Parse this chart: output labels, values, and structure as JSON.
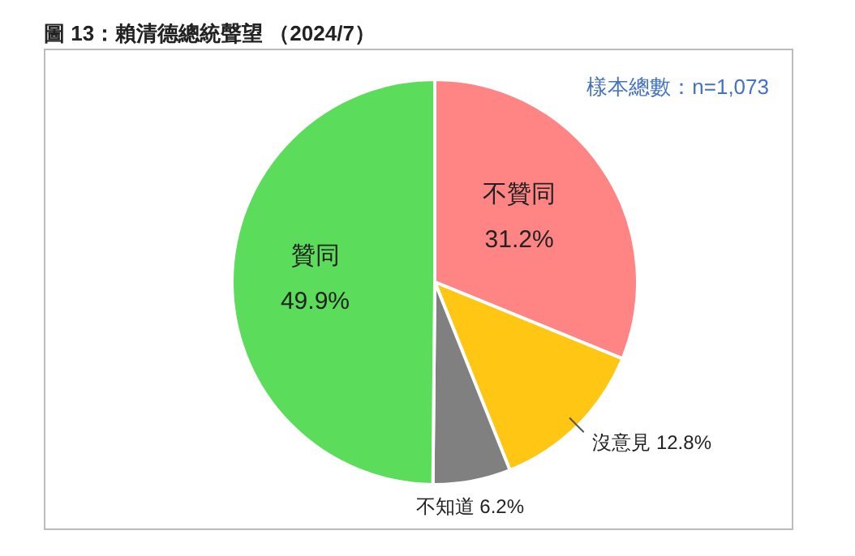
{
  "chart_data": {
    "type": "pie",
    "title": "圖 13：賴清德總統聲望 （2024/7）",
    "annotations": [
      "樣本總數：n=1,073"
    ],
    "categories": [
      "不贊同",
      "沒意見",
      "不知道",
      "贊同"
    ],
    "values": [
      31.2,
      12.8,
      6.2,
      49.9
    ],
    "value_labels": [
      "31.2%",
      "12.8%",
      "6.2%",
      "49.9%"
    ],
    "colors": [
      "#ff8585",
      "#ffc614",
      "#808080",
      "#5bdc5b"
    ],
    "legend": false
  }
}
